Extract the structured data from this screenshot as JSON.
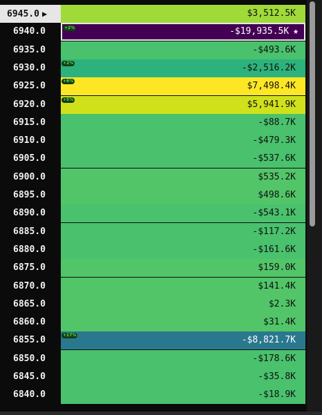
{
  "rows": [
    {
      "strike": "6945.0",
      "value": "$3,512.5K",
      "color": "#a0da39",
      "current": true,
      "arrow": "▶"
    },
    {
      "strike": "6940.0",
      "value": "-$19,935.5K",
      "color": "#440154",
      "selected": true,
      "star": "★",
      "badge": "+2%",
      "dark": true
    },
    {
      "strike": "6935.0",
      "value": "-$493.6K",
      "color": "#4ac16d"
    },
    {
      "strike": "6930.0",
      "value": "-$2,516.2K",
      "color": "#2db27d",
      "badge": "+2%"
    },
    {
      "strike": "6925.0",
      "value": "$7,498.4K",
      "color": "#fde725",
      "badge": "+6%"
    },
    {
      "strike": "6920.0",
      "value": "$5,941.9K",
      "color": "#d0e11c",
      "badge": "+5%"
    },
    {
      "strike": "6915.0",
      "value": "-$88.7K",
      "color": "#4ac16d"
    },
    {
      "strike": "6910.0",
      "value": "-$479.3K",
      "color": "#4ac16d"
    },
    {
      "strike": "6905.0",
      "value": "-$537.6K",
      "color": "#4ac16d"
    },
    {
      "strike": "6900.0",
      "value": "$535.2K",
      "color": "#52c569"
    },
    {
      "strike": "6895.0",
      "value": "$498.6K",
      "color": "#52c569"
    },
    {
      "strike": "6890.0",
      "value": "-$543.1K",
      "color": "#4ac16d"
    },
    {
      "strike": "6885.0",
      "value": "-$117.2K",
      "color": "#4ac16d"
    },
    {
      "strike": "6880.0",
      "value": "-$161.6K",
      "color": "#4ac16d"
    },
    {
      "strike": "6875.0",
      "value": "$159.0K",
      "color": "#52c569"
    },
    {
      "strike": "6870.0",
      "value": "$141.4K",
      "color": "#52c569"
    },
    {
      "strike": "6865.0",
      "value": "$2.3K",
      "color": "#52c569"
    },
    {
      "strike": "6860.0",
      "value": "$31.4K",
      "color": "#52c569"
    },
    {
      "strike": "6855.0",
      "value": "-$8,821.7K",
      "color": "#2a788e",
      "badge": "+17%",
      "dark": true
    },
    {
      "strike": "6850.0",
      "value": "-$178.6K",
      "color": "#4ac16d"
    },
    {
      "strike": "6845.0",
      "value": "-$35.8K",
      "color": "#4ac16d"
    },
    {
      "strike": "6840.0",
      "value": "-$18.9K",
      "color": "#4ac16d"
    }
  ]
}
